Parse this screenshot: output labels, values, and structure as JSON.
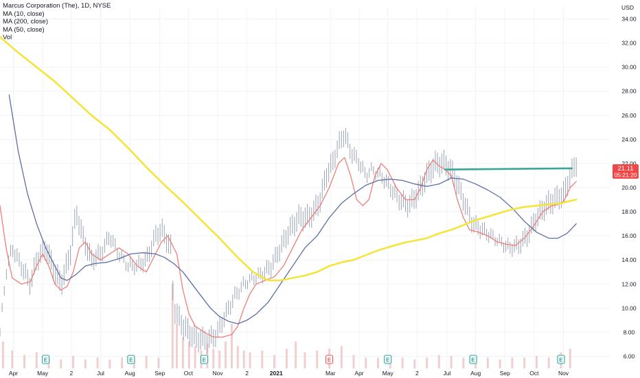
{
  "legend": {
    "title": "Marcus Corporation (The), 1D, NYSE",
    "ma10": "MA (10, close)",
    "ma200": "MA (200, close)",
    "ma50": "MA (50, close)",
    "vol": "Vol"
  },
  "price_box": {
    "price": "21.11",
    "countdown": "05:21:20"
  },
  "colors": {
    "background": "#ffffff",
    "grid": "#f0f3fa",
    "candle": "#9aa3b3",
    "ma10": "#f07d76",
    "ma50": "#5b6ea6",
    "ma200": "#f5e43a",
    "trendline": "#3aa597",
    "volume": "#f2cfcf",
    "price_box": "#ef4747",
    "earnings": "#26a69a",
    "earnings_negative": "#ef5350"
  },
  "chart_data": {
    "type": "line",
    "currency": "USD",
    "ylim": [
      5,
      35
    ],
    "y_ticks": [
      "6.00",
      "8.00",
      "10.00",
      "12.00",
      "14.00",
      "16.00",
      "18.00",
      "20.00",
      "22.00",
      "24.00",
      "26.00",
      "28.00",
      "30.00",
      "32.00",
      "34.00"
    ],
    "x_tick_labels": [
      "Apr",
      "May",
      "2",
      "Jul",
      "Aug",
      "Sep",
      "Oct",
      "Nov",
      "2",
      "2021",
      "Mar",
      "Apr",
      "May",
      "2",
      "Jul",
      "Aug",
      "Sep",
      "Oct",
      "Nov"
    ],
    "x_tick_t": [
      0.022,
      0.07,
      0.117,
      0.165,
      0.213,
      0.262,
      0.309,
      0.357,
      0.405,
      0.453,
      0.542,
      0.589,
      0.636,
      0.684,
      0.733,
      0.78,
      0.828,
      0.876,
      0.924
    ],
    "series": [
      {
        "key": "price",
        "style": "candles",
        "points": [
          [
            0,
            8
          ],
          [
            0.01,
            13
          ],
          [
            0.02,
            15
          ],
          [
            0.035,
            13.5
          ],
          [
            0.05,
            12
          ],
          [
            0.06,
            14
          ],
          [
            0.075,
            15
          ],
          [
            0.09,
            13
          ],
          [
            0.1,
            12
          ],
          [
            0.115,
            14.5
          ],
          [
            0.125,
            18
          ],
          [
            0.135,
            16
          ],
          [
            0.15,
            14
          ],
          [
            0.165,
            14.5
          ],
          [
            0.18,
            16
          ],
          [
            0.195,
            14.5
          ],
          [
            0.21,
            13.5
          ],
          [
            0.225,
            13.5
          ],
          [
            0.24,
            14
          ],
          [
            0.255,
            16
          ],
          [
            0.265,
            16.5
          ],
          [
            0.28,
            15
          ],
          [
            0.285,
            10
          ],
          [
            0.3,
            8.5
          ],
          [
            0.32,
            7.5
          ],
          [
            0.34,
            7.3
          ],
          [
            0.355,
            7.8
          ],
          [
            0.37,
            9.5
          ],
          [
            0.385,
            11
          ],
          [
            0.4,
            12
          ],
          [
            0.415,
            12.5
          ],
          [
            0.43,
            12.8
          ],
          [
            0.445,
            13.5
          ],
          [
            0.46,
            15
          ],
          [
            0.475,
            16.5
          ],
          [
            0.49,
            17.5
          ],
          [
            0.505,
            17.5
          ],
          [
            0.515,
            18
          ],
          [
            0.525,
            19
          ],
          [
            0.535,
            21
          ],
          [
            0.545,
            22
          ],
          [
            0.555,
            23.5
          ],
          [
            0.565,
            24.5
          ],
          [
            0.575,
            23
          ],
          [
            0.59,
            22
          ],
          [
            0.6,
            21
          ],
          [
            0.61,
            21.5
          ],
          [
            0.625,
            21
          ],
          [
            0.64,
            20
          ],
          [
            0.655,
            19
          ],
          [
            0.67,
            18.5
          ],
          [
            0.685,
            19.5
          ],
          [
            0.7,
            21
          ],
          [
            0.715,
            22
          ],
          [
            0.73,
            22
          ],
          [
            0.745,
            21
          ],
          [
            0.76,
            19
          ],
          [
            0.775,
            17
          ],
          [
            0.79,
            16.5
          ],
          [
            0.805,
            16
          ],
          [
            0.82,
            15.5
          ],
          [
            0.835,
            15
          ],
          [
            0.85,
            15.2
          ],
          [
            0.865,
            16
          ],
          [
            0.88,
            17.5
          ],
          [
            0.895,
            18.5
          ],
          [
            0.91,
            19
          ],
          [
            0.925,
            19.5
          ],
          [
            0.935,
            21
          ],
          [
            0.945,
            22
          ]
        ]
      },
      {
        "key": "ma10",
        "name": "MA (10, close)",
        "points": [
          [
            0,
            18.5
          ],
          [
            0.01,
            15
          ],
          [
            0.02,
            12.5
          ],
          [
            0.035,
            12
          ],
          [
            0.05,
            12.2
          ],
          [
            0.06,
            13.5
          ],
          [
            0.07,
            14.5
          ],
          [
            0.08,
            13.5
          ],
          [
            0.09,
            12
          ],
          [
            0.1,
            11.5
          ],
          [
            0.11,
            11.8
          ],
          [
            0.12,
            13
          ],
          [
            0.13,
            15
          ],
          [
            0.14,
            15.5
          ],
          [
            0.15,
            14.5
          ],
          [
            0.165,
            14
          ],
          [
            0.18,
            14.5
          ],
          [
            0.195,
            15
          ],
          [
            0.21,
            14.5
          ],
          [
            0.225,
            13.5
          ],
          [
            0.24,
            13
          ],
          [
            0.255,
            14.5
          ],
          [
            0.265,
            15.5
          ],
          [
            0.275,
            16
          ],
          [
            0.29,
            14.5
          ],
          [
            0.3,
            11.5
          ],
          [
            0.31,
            9.5
          ],
          [
            0.32,
            8.5
          ],
          [
            0.335,
            8
          ],
          [
            0.35,
            7.6
          ],
          [
            0.365,
            7.6
          ],
          [
            0.38,
            7.8
          ],
          [
            0.39,
            8.5
          ],
          [
            0.4,
            10
          ],
          [
            0.41,
            11.2
          ],
          [
            0.42,
            12
          ],
          [
            0.435,
            12.3
          ],
          [
            0.45,
            12.6
          ],
          [
            0.465,
            13.5
          ],
          [
            0.48,
            15
          ],
          [
            0.495,
            16.5
          ],
          [
            0.51,
            17.5
          ],
          [
            0.525,
            18.5
          ],
          [
            0.54,
            20
          ],
          [
            0.555,
            22
          ],
          [
            0.565,
            22.5
          ],
          [
            0.575,
            21
          ],
          [
            0.585,
            19
          ],
          [
            0.595,
            18.5
          ],
          [
            0.605,
            19
          ],
          [
            0.615,
            21
          ],
          [
            0.625,
            22
          ],
          [
            0.635,
            21.5
          ],
          [
            0.65,
            20
          ],
          [
            0.665,
            19
          ],
          [
            0.68,
            19
          ],
          [
            0.69,
            20
          ],
          [
            0.7,
            21.5
          ],
          [
            0.71,
            22.3
          ],
          [
            0.72,
            21.8
          ],
          [
            0.73,
            21.5
          ],
          [
            0.74,
            21
          ],
          [
            0.75,
            19
          ],
          [
            0.76,
            17.5
          ],
          [
            0.77,
            16.5
          ],
          [
            0.785,
            16.3
          ],
          [
            0.8,
            16
          ],
          [
            0.815,
            15.5
          ],
          [
            0.83,
            15.3
          ],
          [
            0.845,
            15.2
          ],
          [
            0.86,
            15.8
          ],
          [
            0.875,
            16.8
          ],
          [
            0.89,
            18
          ],
          [
            0.905,
            18.5
          ],
          [
            0.915,
            18.6
          ],
          [
            0.925,
            18.9
          ],
          [
            0.935,
            20
          ],
          [
            0.945,
            20.5
          ]
        ]
      },
      {
        "key": "ma50",
        "name": "MA (50, close)",
        "points": [
          [
            0.015,
            27.7
          ],
          [
            0.03,
            23
          ],
          [
            0.045,
            19.5
          ],
          [
            0.06,
            17
          ],
          [
            0.075,
            15
          ],
          [
            0.09,
            13.5
          ],
          [
            0.1,
            12.5
          ],
          [
            0.11,
            12.3
          ],
          [
            0.125,
            12.8
          ],
          [
            0.14,
            13.5
          ],
          [
            0.155,
            13.7
          ],
          [
            0.175,
            13.8
          ],
          [
            0.195,
            14.1
          ],
          [
            0.215,
            14.5
          ],
          [
            0.235,
            14.6
          ],
          [
            0.255,
            14.5
          ],
          [
            0.27,
            14.2
          ],
          [
            0.285,
            13.7
          ],
          [
            0.3,
            13
          ],
          [
            0.315,
            12
          ],
          [
            0.33,
            11
          ],
          [
            0.345,
            10
          ],
          [
            0.36,
            9.3
          ],
          [
            0.375,
            8.9
          ],
          [
            0.39,
            8.7
          ],
          [
            0.405,
            9
          ],
          [
            0.42,
            9.5
          ],
          [
            0.44,
            10.5
          ],
          [
            0.46,
            12
          ],
          [
            0.48,
            13.5
          ],
          [
            0.5,
            15
          ],
          [
            0.52,
            16
          ],
          [
            0.54,
            17.5
          ],
          [
            0.56,
            18.7
          ],
          [
            0.58,
            19.5
          ],
          [
            0.6,
            20.2
          ],
          [
            0.62,
            20.6
          ],
          [
            0.64,
            20.7
          ],
          [
            0.66,
            20.6
          ],
          [
            0.68,
            20.3
          ],
          [
            0.7,
            20.1
          ],
          [
            0.72,
            20.3
          ],
          [
            0.74,
            20.8
          ],
          [
            0.76,
            20.7
          ],
          [
            0.78,
            20.3
          ],
          [
            0.8,
            19.8
          ],
          [
            0.82,
            19.2
          ],
          [
            0.84,
            18.3
          ],
          [
            0.86,
            17.2
          ],
          [
            0.88,
            16.3
          ],
          [
            0.9,
            15.8
          ],
          [
            0.915,
            15.8
          ],
          [
            0.93,
            16.2
          ],
          [
            0.945,
            17
          ]
        ]
      },
      {
        "key": "ma200",
        "name": "MA (200, close)",
        "points": [
          [
            0,
            32.5
          ],
          [
            0.03,
            31.2
          ],
          [
            0.06,
            30
          ],
          [
            0.09,
            28.8
          ],
          [
            0.12,
            27.4
          ],
          [
            0.15,
            26
          ],
          [
            0.18,
            24.8
          ],
          [
            0.21,
            23.3
          ],
          [
            0.24,
            21.7
          ],
          [
            0.27,
            20.2
          ],
          [
            0.3,
            18.8
          ],
          [
            0.33,
            17.3
          ],
          [
            0.36,
            15.8
          ],
          [
            0.39,
            14.2
          ],
          [
            0.415,
            13
          ],
          [
            0.44,
            12.3
          ],
          [
            0.46,
            12.3
          ],
          [
            0.48,
            12.5
          ],
          [
            0.5,
            12.7
          ],
          [
            0.52,
            13
          ],
          [
            0.54,
            13.5
          ],
          [
            0.56,
            13.8
          ],
          [
            0.58,
            14
          ],
          [
            0.6,
            14.4
          ],
          [
            0.62,
            14.8
          ],
          [
            0.64,
            15.1
          ],
          [
            0.66,
            15.4
          ],
          [
            0.68,
            15.6
          ],
          [
            0.7,
            15.8
          ],
          [
            0.72,
            16.2
          ],
          [
            0.74,
            16.5
          ],
          [
            0.76,
            16.9
          ],
          [
            0.78,
            17.3
          ],
          [
            0.8,
            17.6
          ],
          [
            0.82,
            17.9
          ],
          [
            0.84,
            18.2
          ],
          [
            0.86,
            18.4
          ],
          [
            0.88,
            18.5
          ],
          [
            0.9,
            18.6
          ],
          [
            0.92,
            18.7
          ],
          [
            0.935,
            18.9
          ],
          [
            0.945,
            19
          ]
        ]
      },
      {
        "key": "trendline",
        "style": "trendline",
        "points": [
          [
            0.73,
            21.5
          ],
          [
            0.938,
            21.6
          ]
        ]
      }
    ],
    "volume": [
      [
        0.005,
        0.3
      ],
      [
        0.02,
        0.2
      ],
      [
        0.04,
        0.15
      ],
      [
        0.06,
        0.18
      ],
      [
        0.08,
        0.12
      ],
      [
        0.1,
        0.1
      ],
      [
        0.12,
        0.14
      ],
      [
        0.14,
        0.1
      ],
      [
        0.16,
        0.12
      ],
      [
        0.18,
        0.1
      ],
      [
        0.2,
        0.12
      ],
      [
        0.22,
        0.1
      ],
      [
        0.24,
        0.14
      ],
      [
        0.26,
        0.12
      ],
      [
        0.283,
        0.95
      ],
      [
        0.29,
        0.5
      ],
      [
        0.3,
        0.35
      ],
      [
        0.31,
        0.3
      ],
      [
        0.32,
        0.25
      ],
      [
        0.33,
        0.2
      ],
      [
        0.34,
        0.28
      ],
      [
        0.35,
        0.22
      ],
      [
        0.36,
        0.2
      ],
      [
        0.37,
        0.3
      ],
      [
        0.38,
        0.5
      ],
      [
        0.39,
        0.25
      ],
      [
        0.4,
        0.2
      ],
      [
        0.41,
        0.18
      ],
      [
        0.43,
        0.2
      ],
      [
        0.45,
        0.15
      ],
      [
        0.47,
        0.22
      ],
      [
        0.485,
        0.3
      ],
      [
        0.5,
        0.18
      ],
      [
        0.52,
        0.2
      ],
      [
        0.54,
        0.22
      ],
      [
        0.56,
        0.25
      ],
      [
        0.58,
        0.15
      ],
      [
        0.6,
        0.12
      ],
      [
        0.62,
        0.12
      ],
      [
        0.64,
        0.1
      ],
      [
        0.66,
        0.12
      ],
      [
        0.68,
        0.1
      ],
      [
        0.7,
        0.12
      ],
      [
        0.72,
        0.15
      ],
      [
        0.74,
        0.14
      ],
      [
        0.76,
        0.12
      ],
      [
        0.78,
        0.1
      ],
      [
        0.8,
        0.12
      ],
      [
        0.82,
        0.1
      ],
      [
        0.84,
        0.12
      ],
      [
        0.86,
        0.12
      ],
      [
        0.88,
        0.14
      ],
      [
        0.9,
        0.12
      ],
      [
        0.92,
        0.18
      ],
      [
        0.935,
        0.22
      ]
    ],
    "earnings_markers": [
      [
        0.075,
        "E"
      ],
      [
        0.215,
        "E"
      ],
      [
        0.335,
        "E"
      ],
      [
        0.54,
        "E"
      ],
      [
        0.636,
        "E"
      ],
      [
        0.776,
        "E"
      ],
      [
        0.92,
        "E"
      ]
    ],
    "negative_earnings_index": 3
  }
}
